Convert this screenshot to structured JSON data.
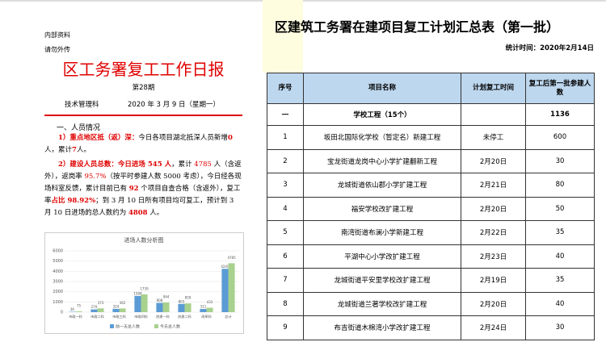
{
  "report": {
    "notes": [
      "内部资料",
      "请勿外传"
    ],
    "title": "区工务署复工工作日报",
    "issue": "第28期",
    "department": "技术管理科",
    "date": "2020 年 3 月 9 日（星期一）",
    "section": "一、人员情况",
    "paragraph1": [
      "1）重点地区抵（返）深：",
      "今日各项目湖北抵深人员新增",
      "0",
      "人，累计",
      "7",
      "人。"
    ],
    "paragraph2": [
      "2）建设人员总数：",
      "今日进场 545 人",
      "，累计 ",
      "4785",
      " 人（含返外），返岗率 ",
      "95.7%",
      "（按平时参建人数 5000 考虑），今日经各现场科室反馈，累计目前已有 ",
      "92",
      " 个项目自查合格（含返外），复工率",
      "占比 98.92%",
      "；到 3 月 10 日所有项目均可复工，预计到 3 月 10 日进场的总人数约为 ",
      "4808",
      " 人。"
    ]
  },
  "chart": {
    "type": "bar",
    "title": "进场人数分析图",
    "categories": [
      "市政一科",
      "市政二科",
      "市政三科",
      "市政四科",
      "房建一科",
      "房建二科",
      "改革科",
      "总计"
    ],
    "series": [
      {
        "name": "前一天总人数",
        "color": "#5b9bd5",
        "values": [
          36,
          270,
          324,
          1588,
          908,
          803,
          311,
          4240
        ]
      },
      {
        "name": "今天总人数",
        "color": "#a9d18e",
        "values": [
          75,
          373,
          362,
          1739,
          944,
          859,
          433,
          4785
        ]
      }
    ],
    "ylim": [
      0,
      6000
    ],
    "yticks": [
      0,
      1000,
      2000,
      3000,
      4000,
      5000,
      6000
    ],
    "grid": true
  },
  "table": {
    "title": "区建筑工务署在建项目复工计划汇总表（第一批）",
    "stat_time": "统计时间：2020年2月14日",
    "headers": [
      "序号",
      "项目名称",
      "计划复工时间",
      "复工后第一批参建人数"
    ],
    "rows": [
      [
        "一",
        "学校工程（15个）",
        "",
        "1136"
      ],
      [
        "1",
        "坂田北国际化学校（暂定名）新建工程",
        "未停工",
        "600"
      ],
      [
        "2",
        "宝龙街道龙岗中心小学扩建翻新工程",
        "2月20日",
        "30"
      ],
      [
        "3",
        "龙城街道依山郡小学扩建工程",
        "2月21日",
        "80"
      ],
      [
        "4",
        "福安学校改扩建工程",
        "2月20日",
        "50"
      ],
      [
        "5",
        "南湾街道布澜小学新建工程",
        "2月22日",
        "35"
      ],
      [
        "6",
        "平湖中心小学改扩建工程",
        "2月23日",
        "40"
      ],
      [
        "7",
        "龙城街道平安里学校改扩建工程",
        "2月19日",
        "35"
      ],
      [
        "8",
        "龙城街道兰著学校改扩建工程",
        "2月20日",
        "40"
      ],
      [
        "9",
        "布吉街道木棉湾小学改扩建工程",
        "2月24日",
        "30"
      ]
    ]
  }
}
